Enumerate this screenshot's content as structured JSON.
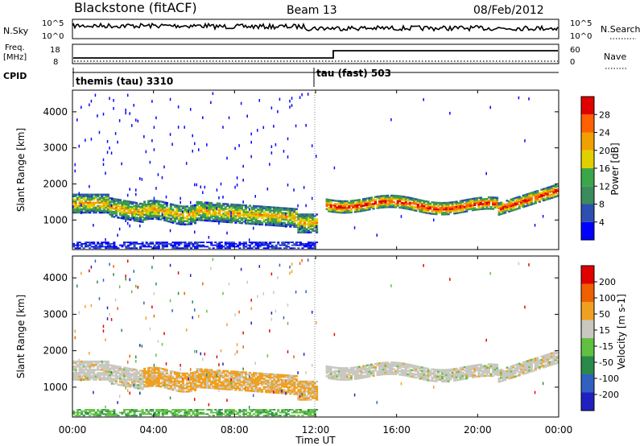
{
  "header": {
    "station": "Blackstone (fitACF)",
    "beam": "Beam 13",
    "date": "08/Feb/2012"
  },
  "noise_panel": {
    "left_label": "N.Sky",
    "right_label": "N.Search",
    "left_ticks": [
      "10^5",
      "10^0"
    ],
    "right_ticks": [
      "10^5",
      "10^0"
    ]
  },
  "freq_panel": {
    "left_label_line1": "Freq.",
    "left_label_line2": "[MHz]",
    "left_ticks": [
      "18",
      "8"
    ],
    "right_label": "Nave",
    "right_ticks": [
      "60",
      "0"
    ]
  },
  "cpid_panel": {
    "label": "CPID",
    "segments": [
      {
        "name": "themis (tau) 3310",
        "start_hour": 0
      },
      {
        "name": "tau (fast) 503",
        "start_hour": 12.0
      }
    ]
  },
  "time_axis": {
    "label": "Time UT",
    "ticks": [
      "00:00",
      "04:00",
      "08:00",
      "12:00",
      "16:00",
      "20:00",
      "00:00"
    ],
    "range_hours": [
      0,
      24
    ]
  },
  "chart_data": [
    {
      "type": "heatmap",
      "name": "power",
      "ylabel": "Slant Range [km]",
      "yticks": [
        1000,
        2000,
        3000,
        4000
      ],
      "ylim": [
        180,
        4600
      ],
      "colorbar_label": "Power [dB]",
      "colorbar_ticks": [
        "28",
        "24",
        "20",
        "16",
        "12",
        "8",
        "4"
      ],
      "colors": [
        "#0000ff",
        "#2d4fb0",
        "#3a8c5c",
        "#3aa74a",
        "#e0d000",
        "#f0a000",
        "#ff6000",
        "#e00000"
      ]
    },
    {
      "type": "heatmap",
      "name": "velocity",
      "ylabel": "Slant Range [km]",
      "yticks": [
        1000,
        2000,
        3000,
        4000
      ],
      "ylim": [
        180,
        4600
      ],
      "colorbar_label": "Velocity [m s-1]",
      "colorbar_ticks": [
        "200",
        "100",
        "50",
        "15",
        "-15",
        "-50",
        "-100",
        "-200"
      ],
      "colors": [
        "#2020c0",
        "#3060c0",
        "#2a8a4a",
        "#60c040",
        "#c8c8c0",
        "#f0a020",
        "#f06000",
        "#e00000"
      ]
    }
  ]
}
